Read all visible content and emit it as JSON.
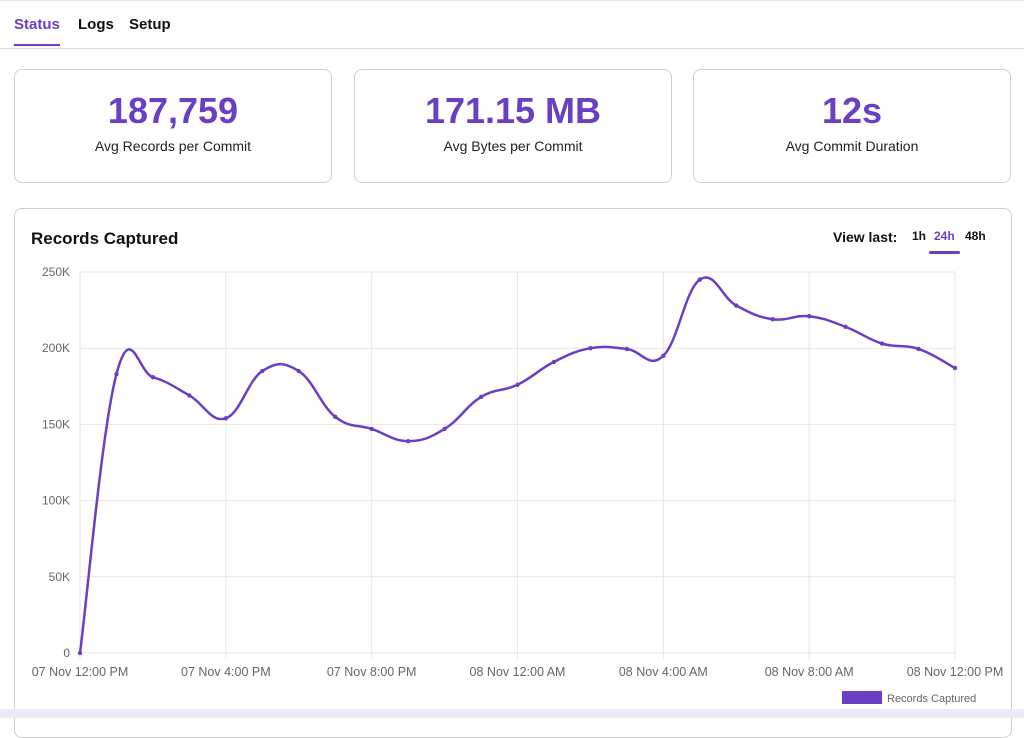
{
  "tabs": [
    {
      "label": "Status",
      "active": true
    },
    {
      "label": "Logs",
      "active": false
    },
    {
      "label": "Setup",
      "active": false
    }
  ],
  "stats": [
    {
      "value": "187,759",
      "label": "Avg Records per Commit"
    },
    {
      "value": "171.15 MB",
      "label": "Avg Bytes per Commit"
    },
    {
      "value": "12s",
      "label": "Avg Commit Duration"
    }
  ],
  "chart_panel": {
    "title": "Records Captured",
    "view_last_label": "View last:",
    "ranges": [
      "1h",
      "24h",
      "48h"
    ],
    "selected_range": "24h"
  },
  "colors": {
    "accent": "#6b3fc4",
    "grid": "#e6e6e6"
  },
  "chart_data": {
    "type": "line",
    "title": "Records Captured",
    "xlabel": "",
    "ylabel": "",
    "ylim": [
      0,
      250000
    ],
    "y_ticks": [
      "0",
      "50K",
      "100K",
      "150K",
      "200K",
      "250K"
    ],
    "x_ticks": [
      "07 Nov 12:00 PM",
      "07 Nov 4:00 PM",
      "07 Nov 8:00 PM",
      "08 Nov 12:00 AM",
      "08 Nov 4:00 AM",
      "08 Nov 8:00 AM",
      "08 Nov 12:00 PM"
    ],
    "x_range_hours": [
      0,
      24
    ],
    "legend": {
      "position": "bottom-right",
      "entries": [
        "Records Captured"
      ]
    },
    "grid": true,
    "series": [
      {
        "name": "Records Captured",
        "x": [
          0,
          1,
          2,
          3,
          4,
          5,
          6,
          7,
          8,
          9,
          10,
          11,
          12,
          13,
          14,
          15,
          16,
          17,
          18,
          19,
          20,
          21,
          22,
          23,
          24
        ],
        "values": [
          0,
          183000,
          181000,
          169000,
          154000,
          185000,
          185000,
          155000,
          147000,
          139000,
          147000,
          168000,
          176000,
          191000,
          200000,
          199500,
          195000,
          245000,
          228000,
          219000,
          221000,
          214000,
          203000,
          199500,
          187000
        ]
      }
    ]
  }
}
